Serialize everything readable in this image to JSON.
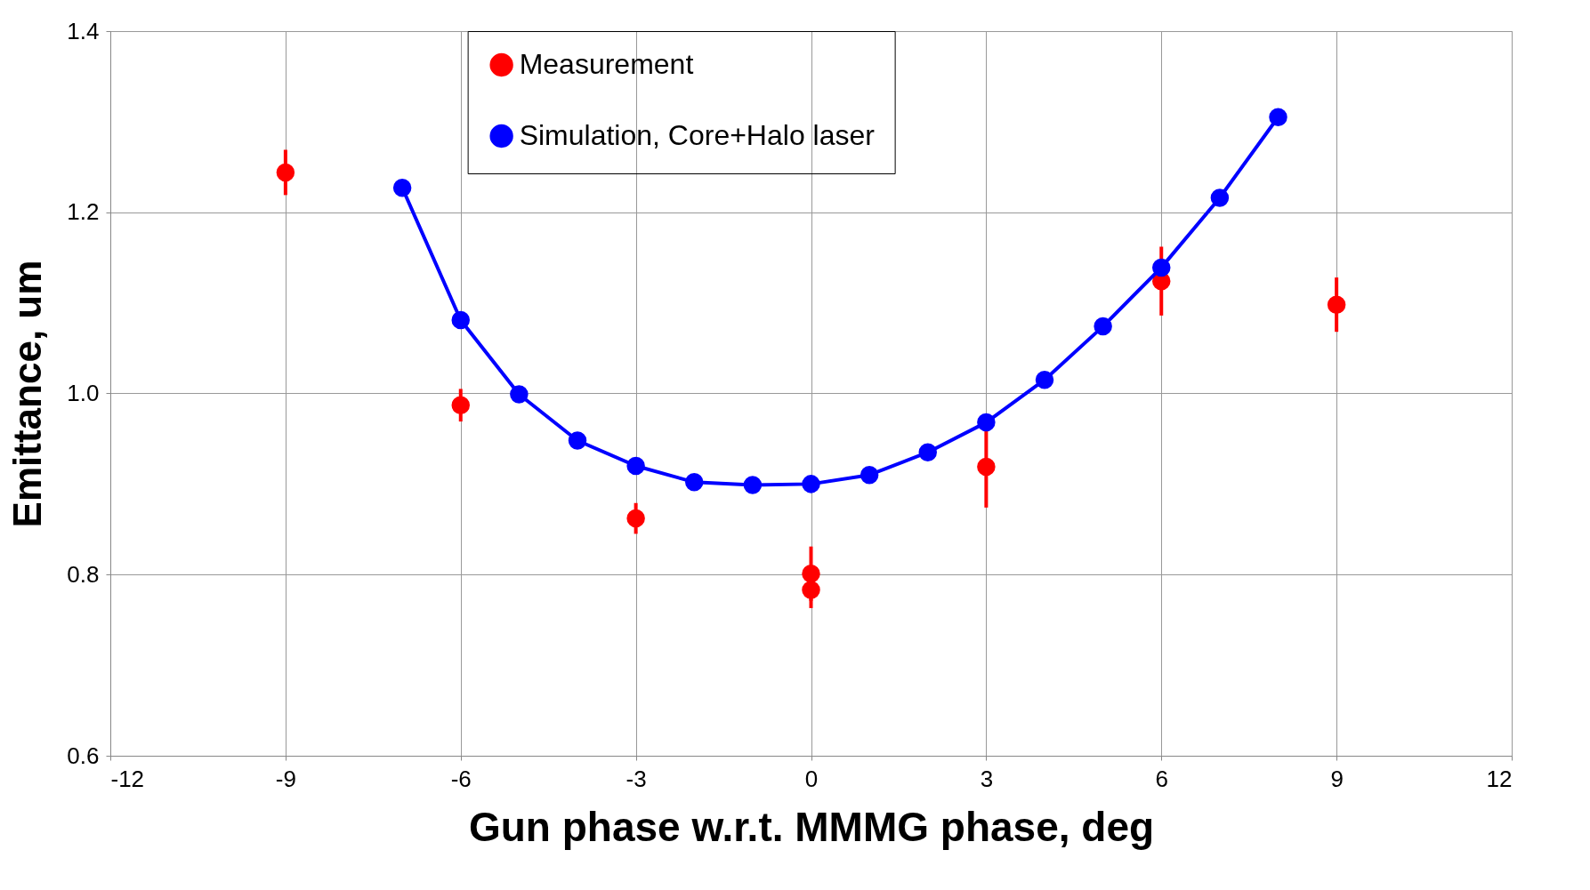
{
  "chart_data": {
    "type": "scatter",
    "xlabel": "Gun phase w.r.t. MMMG phase, deg",
    "ylabel": "Emittance, um",
    "xlim": [
      -12,
      12
    ],
    "xticks": [
      -12,
      -9,
      -6,
      -3,
      0,
      3,
      6,
      9,
      12
    ],
    "ylim": [
      0.6,
      1.4
    ],
    "yticks": [
      0.6,
      0.8,
      {
        "value": 1.0,
        "label": "1.0"
      },
      1.2,
      1.4
    ],
    "grid": true,
    "legend": "top",
    "series": [
      {
        "name": "Measurement",
        "marker": "circle",
        "color": "#ff0000",
        "x": [
          -9,
          -6,
          -3,
          0,
          0,
          3,
          6,
          9
        ],
        "values": [
          1.244,
          0.987,
          0.862,
          0.801,
          0.783,
          0.919,
          1.124,
          1.098
        ],
        "errors": [
          0.025,
          0.018,
          0.017,
          0.03,
          0.02,
          0.045,
          0.038,
          0.03
        ]
      },
      {
        "name": "Simulation, Core+Halo laser",
        "type": "line",
        "marker": "circle",
        "line_style": "solid",
        "color": "#0000ff",
        "x": [
          -7,
          -6,
          -5,
          -4,
          -3,
          -2,
          -1,
          0,
          1,
          2,
          3,
          4,
          5,
          6,
          7,
          8
        ],
        "values": [
          1.227,
          1.081,
          0.999,
          0.948,
          0.92,
          0.902,
          0.899,
          0.9,
          0.91,
          0.935,
          0.968,
          1.015,
          1.074,
          1.139,
          1.216,
          1.305
        ]
      }
    ]
  }
}
